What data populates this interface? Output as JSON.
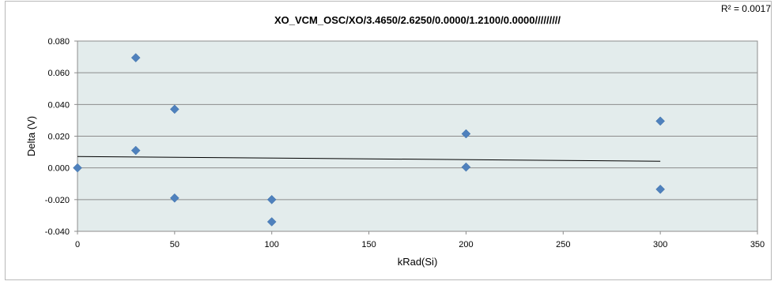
{
  "chart_data": {
    "type": "scatter",
    "title": "XO_VCM_OSC/XO/3.4650/2.6250/0.0000/1.2100/0.0000/////////",
    "xlabel": "kRad(Si)",
    "ylabel": "Delta (V)",
    "xlim": [
      0,
      350
    ],
    "ylim": [
      -0.04,
      0.08
    ],
    "x_ticks": [
      "0",
      "50",
      "100",
      "150",
      "200",
      "250",
      "300",
      "350"
    ],
    "y_ticks": [
      "-0.040",
      "-0.020",
      "0.000",
      "0.020",
      "0.040",
      "0.060",
      "0.080"
    ],
    "grid": true,
    "points": [
      {
        "x": 0,
        "y": 0.0
      },
      {
        "x": 30,
        "y": 0.0695
      },
      {
        "x": 30,
        "y": 0.011
      },
      {
        "x": 50,
        "y": 0.037
      },
      {
        "x": 50,
        "y": -0.019
      },
      {
        "x": 100,
        "y": -0.02
      },
      {
        "x": 100,
        "y": -0.034
      },
      {
        "x": 200,
        "y": 0.0215
      },
      {
        "x": 200,
        "y": 0.0005
      },
      {
        "x": 300,
        "y": 0.0295
      },
      {
        "x": 300,
        "y": -0.0135
      }
    ],
    "trendline": {
      "x": [
        0,
        300
      ],
      "y": [
        0.0072,
        0.0042
      ]
    },
    "r_squared_label": "R² = 0.0017",
    "colors": {
      "marker": "#4f81bd",
      "plot_bg": "#e3ecec",
      "grid": "#8c8c8c",
      "trend": "#000000"
    }
  }
}
